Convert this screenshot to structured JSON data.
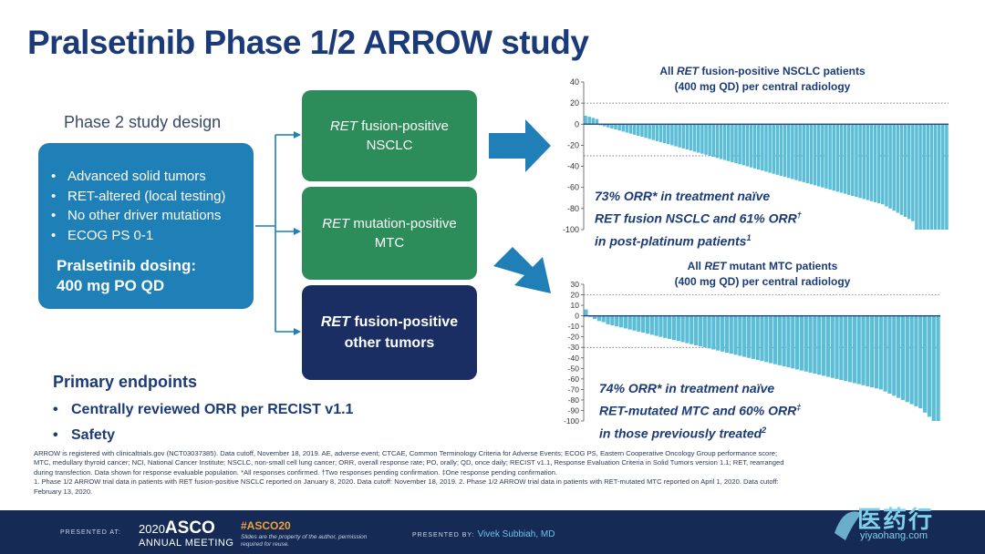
{
  "title": "Pralsetinib Phase 1/2 ARROW study",
  "design": {
    "heading": "Phase 2 study design",
    "criteria": [
      "Advanced solid tumors",
      "RET-altered (local testing)",
      "No other driver mutations",
      "ECOG PS 0-1"
    ],
    "dosing_line1": "Pralsetinib dosing:",
    "dosing_line2": "400 mg PO QD"
  },
  "arms": [
    {
      "gene": "RET",
      "rest1": " fusion-positive",
      "line2": "NSCLC"
    },
    {
      "gene": "RET",
      "rest1": " mutation-positive",
      "line2": "MTC"
    },
    {
      "gene": "RET",
      "rest1": " fusion-positive",
      "line2": "other tumors"
    }
  ],
  "endpoints": {
    "heading": "Primary endpoints",
    "items": [
      "Centrally reviewed ORR per RECIST v1.1",
      "Safety"
    ]
  },
  "colors": {
    "title": "#1b3a78",
    "design_box": "#1f80b8",
    "arm_green": "#2c8c5a",
    "arm_navy": "#1b2e63",
    "bar": "#5bbdd6",
    "arrow": "#1f7fb6",
    "footer": "#152a55"
  },
  "chart_data": [
    {
      "type": "bar",
      "title_line1_pre": "All ",
      "title_line1_gene": "RET",
      "title_line1_post": " fusion-positive NSCLC patients",
      "title_line2": "(400 mg QD) per central radiology",
      "ylim": [
        -100,
        40
      ],
      "yticks": [
        40,
        20,
        0,
        -20,
        -40,
        -60,
        -80,
        -100
      ],
      "reference_lines": [
        20,
        -30
      ],
      "values": [
        8,
        7,
        6,
        5,
        -1,
        -2,
        -3,
        -4,
        -5,
        -6,
        -7,
        -8,
        -9,
        -10,
        -11,
        -12,
        -13,
        -14,
        -15,
        -16,
        -17,
        -18,
        -19,
        -20,
        -21,
        -22,
        -23,
        -24,
        -25,
        -26,
        -27,
        -28,
        -29,
        -30,
        -31,
        -32,
        -33,
        -34,
        -35,
        -36,
        -37,
        -38,
        -39,
        -40,
        -41,
        -42,
        -43,
        -44,
        -45,
        -46,
        -47,
        -48,
        -49,
        -50,
        -51,
        -52,
        -53,
        -54,
        -55,
        -56,
        -57,
        -58,
        -59,
        -60,
        -61,
        -62,
        -63,
        -64,
        -65,
        -66,
        -67,
        -68,
        -69,
        -70,
        -71,
        -72,
        -73,
        -74,
        -75,
        -76,
        -78,
        -80,
        -82,
        -84,
        -86,
        -88,
        -90,
        -92,
        -100,
        -100,
        -100,
        -100,
        -100,
        -100,
        -100,
        -100,
        -100
      ],
      "annotation": [
        "73% ORR* in treatment naïve",
        "RET fusion NSCLC and 61% ORR",
        "in post-platinum patients"
      ],
      "annotation_sup": [
        "",
        "†",
        "1"
      ]
    },
    {
      "type": "bar",
      "title_line1_pre": "All ",
      "title_line1_gene": "RET",
      "title_line1_post": " mutant MTC patients",
      "title_line2": "(400 mg QD) per central radiology",
      "ylim": [
        -100,
        30
      ],
      "yticks": [
        30,
        20,
        10,
        0,
        -10,
        -20,
        -30,
        -40,
        -50,
        -60,
        -70,
        -80,
        -90,
        -100
      ],
      "reference_lines": [
        20,
        -30
      ],
      "values": [
        6,
        -1,
        -3,
        -5,
        -6,
        -8,
        -9,
        -10,
        -11,
        -12,
        -13,
        -14,
        -15,
        -16,
        -17,
        -18,
        -19,
        -20,
        -21,
        -22,
        -23,
        -24,
        -25,
        -26,
        -27,
        -28,
        -29,
        -30,
        -31,
        -32,
        -33,
        -34,
        -35,
        -36,
        -37,
        -38,
        -39,
        -40,
        -41,
        -42,
        -43,
        -44,
        -45,
        -46,
        -47,
        -48,
        -49,
        -50,
        -51,
        -52,
        -53,
        -54,
        -55,
        -56,
        -57,
        -58,
        -59,
        -60,
        -61,
        -62,
        -63,
        -64,
        -65,
        -66,
        -67,
        -68,
        -69,
        -70,
        -72,
        -74,
        -76,
        -78,
        -80,
        -82,
        -84,
        -86,
        -88,
        -92,
        -96,
        -100,
        -100
      ],
      "annotation": [
        "74% ORR* in treatment naïve",
        "RET-mutated MTC and 60% ORR",
        "in those previously treated"
      ],
      "annotation_sup": [
        "",
        "‡",
        "2"
      ]
    }
  ],
  "footnote": {
    "line1": "ARROW is registered with clinicaltrials.gov (NCT03037385). Data cutoff, November 18, 2019. AE, adverse event; CTCAE, Common Terminology Criteria for Adverse Events; ECOG PS, Eastern Cooperative Oncology Group performance score;",
    "line2": "MTC, medullary thyroid cancer; NCI, National Cancer Institute; NSCLC, non-small cell lung cancer; ORR, overall response rate; PO, orally; QD, once daily; RECIST v1.1, Response Evaluation Criteria in Solid Tumors version 1.1; RET, rearranged",
    "line3": "during transfection. Data shown for response evaluable population. *All responses confirmed. †Two responses pending confirmation. ‡One response pending confirmation.",
    "line4": "1. Phase 1/2 ARROW trial data in patients with RET fusion-positive NSCLC reported on January 8, 2020. Data cutoff: November 18, 2019. 2. Phase 1/2 ARROW trial data in patients with RET-mutated MTC reported on April 1, 2020. Data cutoff:",
    "line5": "February 13, 2020."
  },
  "footer": {
    "presented_at": "PRESENTED AT:",
    "logo_year": "2020",
    "logo_name": "ASCO",
    "meeting": "ANNUAL MEETING",
    "hashtag": "#ASCO20",
    "note": "Slides are the property of the author, permission required for reuse.",
    "presented_by": "PRESENTED BY:",
    "presenter": "Vivek Subbiah, MD"
  },
  "watermark": {
    "text": "医药行",
    "url": "yiyaohang.com"
  }
}
